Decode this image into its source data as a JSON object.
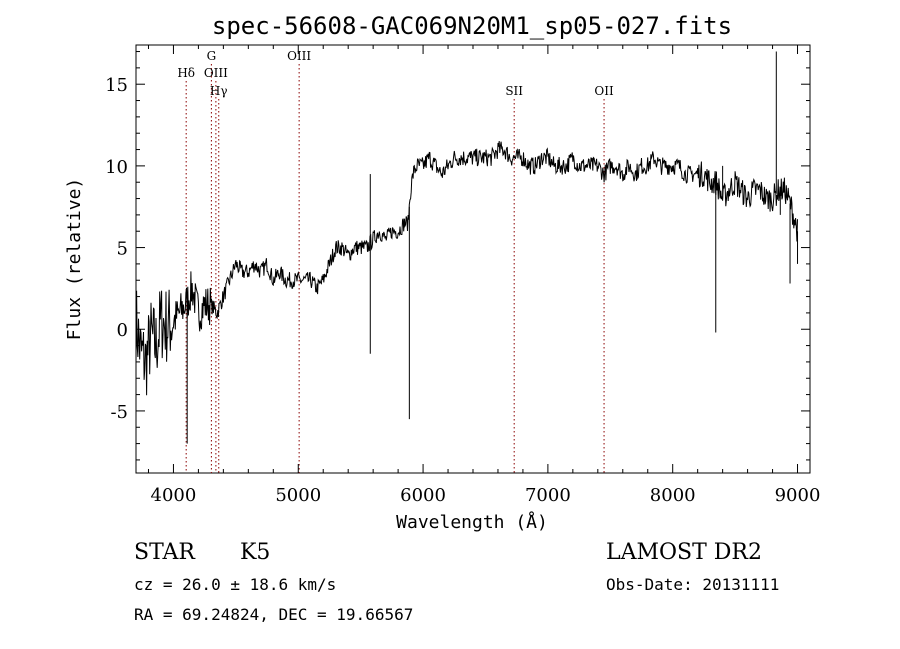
{
  "chart_data": {
    "type": "line",
    "title": "spec-56608-GAC069N20M1_sp05-027.fits",
    "xlabel": "Wavelength (Å)",
    "ylabel": "Flux (relative)",
    "xlim": [
      3700,
      9100
    ],
    "ylim": [
      -8.8,
      17.4
    ],
    "x_ticks": [
      4000,
      5000,
      6000,
      7000,
      8000,
      9000
    ],
    "y_ticks": [
      -5,
      0,
      5,
      10,
      15
    ],
    "grid": false,
    "series": [
      {
        "x": [
          3700,
          3740,
          3780,
          3820,
          3860,
          3900,
          3950,
          4000,
          4050,
          4100,
          4150,
          4200,
          4250,
          4300,
          4350,
          4400,
          4450,
          4500,
          4550,
          4600,
          4650,
          4700,
          4750,
          4800,
          4850,
          4900,
          4950,
          5000,
          5050,
          5100,
          5150,
          5200,
          5250,
          5300,
          5350,
          5400,
          5450,
          5500,
          5550,
          5600,
          5650,
          5700,
          5750,
          5800,
          5850,
          5880,
          5900,
          5920,
          5950,
          6000,
          6050,
          6100,
          6150,
          6200,
          6250,
          6300,
          6350,
          6400,
          6450,
          6500,
          6550,
          6600,
          6650,
          6700,
          6750,
          6800,
          6850,
          6900,
          6950,
          7000,
          7050,
          7100,
          7150,
          7200,
          7250,
          7300,
          7350,
          7400,
          7450,
          7500,
          7550,
          7600,
          7650,
          7700,
          7750,
          7800,
          7850,
          7900,
          7950,
          8000,
          8050,
          8100,
          8150,
          8200,
          8250,
          8300,
          8350,
          8400,
          8450,
          8500,
          8550,
          8600,
          8650,
          8700,
          8750,
          8800,
          8850,
          8900,
          8950,
          9000
        ],
        "y": [
          0.5,
          -1.5,
          -2.0,
          -0.5,
          -1.0,
          0.5,
          0.2,
          0.5,
          1.0,
          1.5,
          2.5,
          1.0,
          1.5,
          1.5,
          1.0,
          2.0,
          3.0,
          4.0,
          3.5,
          3.5,
          4.0,
          3.5,
          4.0,
          3.0,
          3.5,
          3.0,
          3.0,
          3.0,
          3.0,
          3.0,
          2.5,
          3.0,
          4.0,
          5.0,
          5.0,
          4.5,
          5.0,
          5.0,
          5.0,
          5.5,
          6.0,
          5.5,
          6.0,
          6.0,
          6.5,
          6.5,
          8.5,
          9.5,
          10.0,
          10.0,
          10.5,
          10.0,
          9.5,
          10.0,
          10.5,
          10.5,
          10.5,
          10.5,
          10.5,
          10.5,
          10.5,
          11.0,
          11.0,
          10.5,
          10.5,
          10.5,
          10.0,
          10.0,
          10.5,
          10.5,
          10.0,
          10.0,
          10.0,
          10.5,
          10.0,
          10.0,
          10.0,
          10.0,
          9.5,
          10.0,
          10.0,
          9.5,
          10.0,
          9.5,
          10.0,
          10.0,
          10.5,
          10.0,
          10.0,
          10.0,
          10.0,
          9.5,
          9.5,
          9.5,
          9.5,
          9.0,
          9.0,
          8.0,
          8.5,
          9.0,
          8.5,
          8.0,
          8.5,
          8.5,
          8.0,
          8.0,
          8.5,
          8.5,
          7.5,
          6.0
        ]
      }
    ],
    "spikes": [
      {
        "x": 5577,
        "y": -1.5
      },
      {
        "x": 5577,
        "y": 9.5
      },
      {
        "x": 5890,
        "y": -5.5
      },
      {
        "x": 4110,
        "y": -7.0
      },
      {
        "x": 8345,
        "y": -0.2
      },
      {
        "x": 8400,
        "y": 10.0
      },
      {
        "x": 8830,
        "y": 17.0
      },
      {
        "x": 8862,
        "y": 7.0
      },
      {
        "x": 8940,
        "y": 2.8
      },
      {
        "x": 9000,
        "y": 4.0
      }
    ],
    "line_markers": [
      {
        "label": "Hδ",
        "x": 4102,
        "row": 1
      },
      {
        "label": "G",
        "x": 4304,
        "row": 0
      },
      {
        "label": "OIII",
        "x": 4340,
        "row": 1
      },
      {
        "label": "Hγ",
        "x": 4363,
        "row": 2
      },
      {
        "label": "OIII",
        "x": 5007,
        "row": 0
      },
      {
        "label": "SII",
        "x": 6730,
        "row": 2
      },
      {
        "label": "OII",
        "x": 7450,
        "row": 2
      }
    ]
  },
  "info": {
    "class": "STAR",
    "subclass": "K5",
    "survey": "LAMOST DR2",
    "cz": "cz = 26.0 ± 18.6 km/s",
    "obs_date": "Obs-Date: 20131111",
    "coords": "RA =  69.24824, DEC =  19.66567"
  }
}
